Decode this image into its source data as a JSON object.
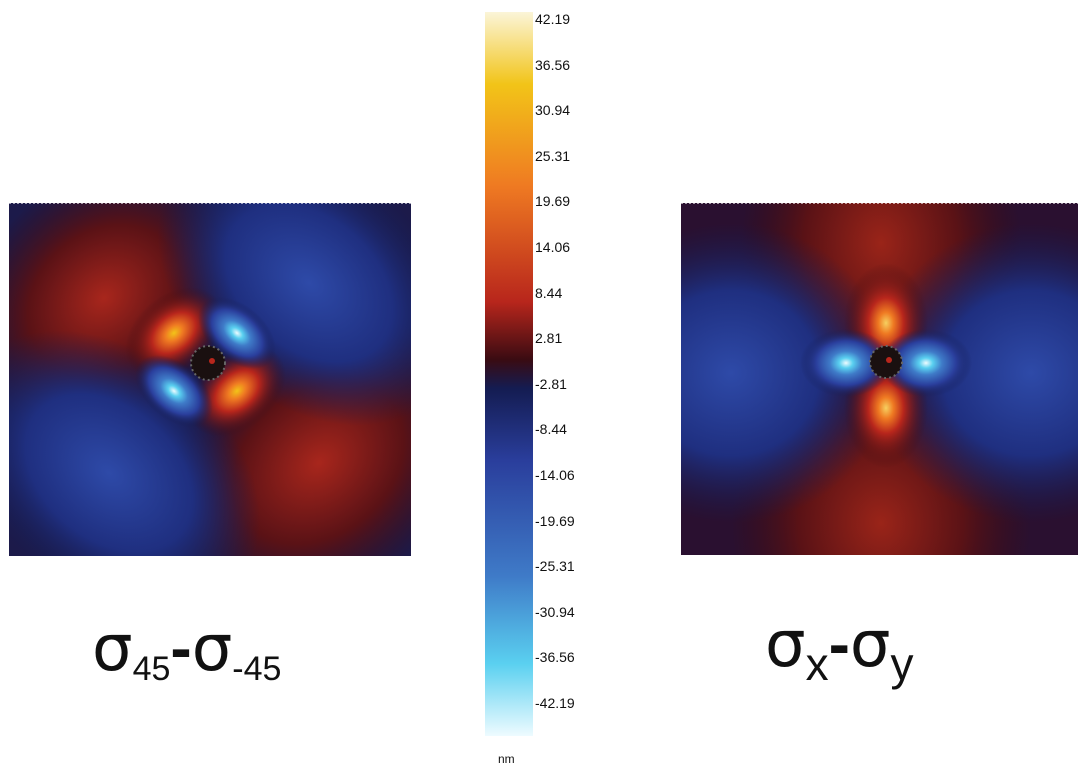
{
  "colorbar": {
    "unit": "nm",
    "ticks": [
      "42.19",
      "36.56",
      "30.94",
      "25.31",
      "19.69",
      "14.06",
      "8.44",
      "2.81",
      "-2.81",
      "-8.44",
      "-14.06",
      "-19.69",
      "-25.31",
      "-30.94",
      "-36.56",
      "-42.19"
    ],
    "colors": {
      "top": "#fbf5d8",
      "yellow": "#f2c418",
      "orange": "#ef7a22",
      "red": "#b8261c",
      "dark_red": "#3a0b12",
      "dark_blue": "#141c52",
      "blue": "#2a3e9c",
      "mid_blue": "#3f7bc8",
      "light_blue": "#5ad0f0",
      "bottom": "#eefbff"
    }
  },
  "panels": {
    "left": {
      "formula": {
        "symbol": "σ",
        "sub1": "45",
        "dash": "-",
        "sub2": "-45"
      }
    },
    "right": {
      "formula": {
        "symbol": "σ",
        "sub1": "x",
        "dash": "-",
        "sub2": "y"
      }
    }
  }
}
